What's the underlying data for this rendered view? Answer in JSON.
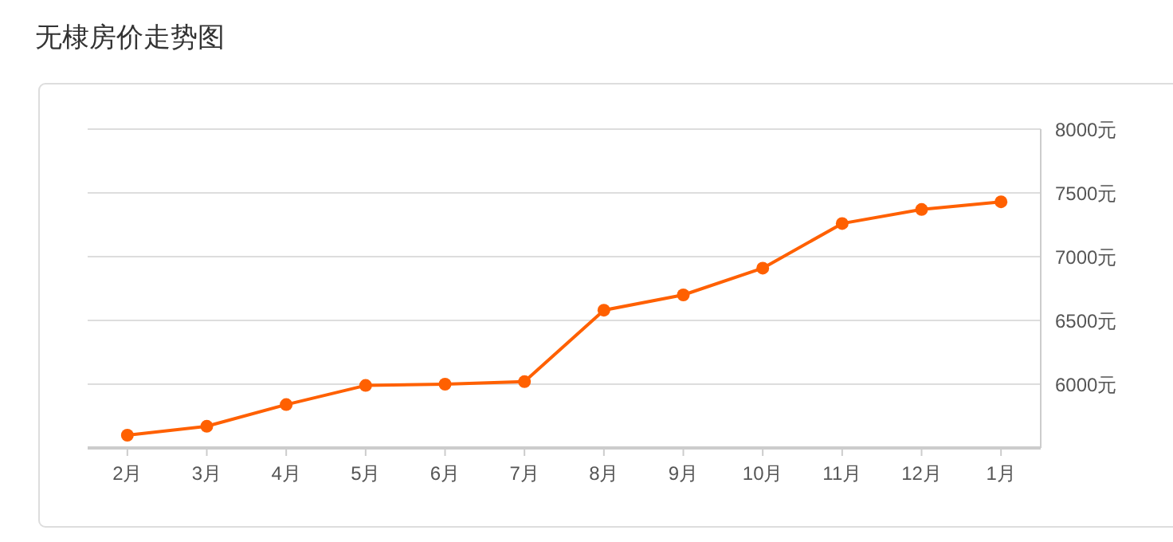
{
  "chart_data": {
    "type": "line",
    "title": "无棣房价走势图",
    "categories": [
      "2月",
      "3月",
      "4月",
      "5月",
      "6月",
      "7月",
      "8月",
      "9月",
      "10月",
      "11月",
      "12月",
      "1月"
    ],
    "series": [
      {
        "color": "#ff6000",
        "values": [
          5600,
          5670,
          5840,
          5990,
          6000,
          6020,
          6580,
          6700,
          6910,
          7260,
          7370,
          7430
        ]
      }
    ],
    "ylim": [
      5500,
      8000
    ],
    "yticks": [
      {
        "value": 6000,
        "label": "6000元"
      },
      {
        "value": 6500,
        "label": "6500元"
      },
      {
        "value": 7000,
        "label": "7000元"
      },
      {
        "value": 7500,
        "label": "7500元"
      },
      {
        "value": 8000,
        "label": "8000元"
      }
    ],
    "grid": "y",
    "marker": "circle",
    "line_style": "solid"
  }
}
